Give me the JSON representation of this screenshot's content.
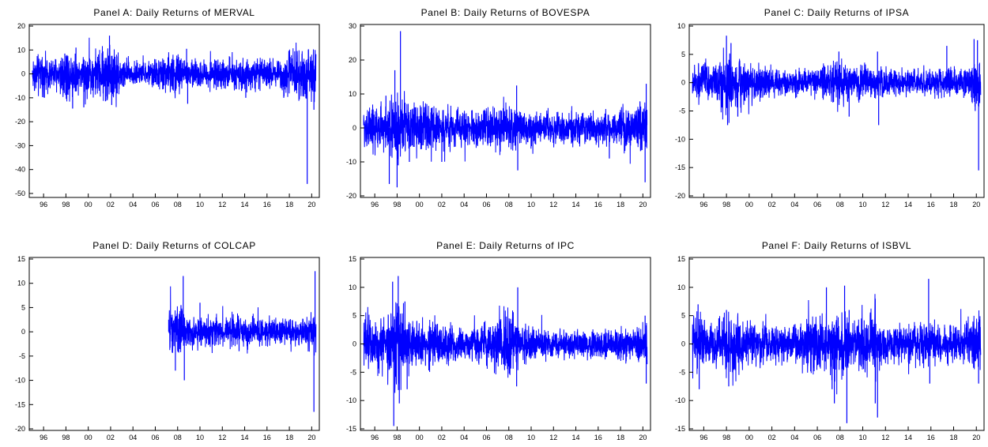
{
  "colors": {
    "series": "#0000ff",
    "frame": "#000000",
    "background": "#ffffff"
  },
  "chart_data": [
    {
      "type": "line",
      "title": "Panel A: Daily Returns of MERVAL",
      "xlabel": "",
      "ylabel": "",
      "x_range": [
        1995,
        2020.4
      ],
      "ylim": [
        -51,
        20
      ],
      "yticks": [
        20,
        10,
        0,
        -10,
        -20,
        -30,
        -40,
        -50
      ],
      "xticks": [
        {
          "year": 1996,
          "label": "96"
        },
        {
          "year": 1998,
          "label": "98"
        },
        {
          "year": 2000,
          "label": "00"
        },
        {
          "year": 2002,
          "label": "02"
        },
        {
          "year": 2004,
          "label": "04"
        },
        {
          "year": 2006,
          "label": "06"
        },
        {
          "year": 2008,
          "label": "08"
        },
        {
          "year": 2010,
          "label": "10"
        },
        {
          "year": 2012,
          "label": "12"
        },
        {
          "year": 2014,
          "label": "14"
        },
        {
          "year": 2016,
          "label": "16"
        },
        {
          "year": 2018,
          "label": "18"
        },
        {
          "year": 2020,
          "label": "20"
        }
      ],
      "series": [
        {
          "data_start": 1995.0,
          "data_end": 2020.4,
          "base_amplitude": 2.5,
          "volatility": [
            [
              1995,
              1.6
            ],
            [
              1997,
              1.3
            ],
            [
              1998,
              2.2
            ],
            [
              1999,
              1.4
            ],
            [
              2001,
              1.9
            ],
            [
              2002,
              2.6
            ],
            [
              2003,
              1.3
            ],
            [
              2005,
              0.8
            ],
            [
              2008,
              1.8
            ],
            [
              2009,
              1.0
            ],
            [
              2012,
              1.1
            ],
            [
              2014,
              1.3
            ],
            [
              2016,
              1.0
            ],
            [
              2018,
              1.6
            ],
            [
              2019.6,
              2.2
            ],
            [
              2020.4,
              2.2
            ]
          ],
          "spikes": [
            [
              1998.6,
              -14.5
            ],
            [
              1997.9,
              8.5
            ],
            [
              1998.9,
              11
            ],
            [
              1999.6,
              -14
            ],
            [
              2001.9,
              16
            ],
            [
              2002.1,
              -13
            ],
            [
              2001.7,
              -11
            ],
            [
              2008.8,
              10.5
            ],
            [
              2008.9,
              -12.5
            ],
            [
              2014.1,
              -10
            ],
            [
              2017.5,
              -10
            ],
            [
              2019.6,
              -46
            ],
            [
              2019.7,
              10
            ],
            [
              2020.2,
              -15
            ],
            [
              2020.3,
              10
            ]
          ]
        }
      ]
    },
    {
      "type": "line",
      "title": "Panel B: Daily Returns of BOVESPA",
      "xlabel": "",
      "ylabel": "",
      "x_range": [
        1995,
        2020.4
      ],
      "ylim": [
        -20,
        30
      ],
      "yticks": [
        30,
        20,
        10,
        0,
        -10,
        -20
      ],
      "xticks": [
        {
          "year": 1996,
          "label": "96"
        },
        {
          "year": 1998,
          "label": "98"
        },
        {
          "year": 2000,
          "label": "00"
        },
        {
          "year": 2002,
          "label": "02"
        },
        {
          "year": 2004,
          "label": "04"
        },
        {
          "year": 2006,
          "label": "06"
        },
        {
          "year": 2008,
          "label": "08"
        },
        {
          "year": 2010,
          "label": "10"
        },
        {
          "year": 2012,
          "label": "12"
        },
        {
          "year": 2014,
          "label": "14"
        },
        {
          "year": 2016,
          "label": "16"
        },
        {
          "year": 2018,
          "label": "18"
        },
        {
          "year": 2020,
          "label": "20"
        }
      ],
      "series": [
        {
          "data_start": 1995.0,
          "data_end": 2020.4,
          "base_amplitude": 2.2,
          "volatility": [
            [
              1995,
              1.4
            ],
            [
              1997,
              1.5
            ],
            [
              1998,
              2.4
            ],
            [
              1999,
              1.7
            ],
            [
              2002,
              1.3
            ],
            [
              2005,
              1.0
            ],
            [
              2008,
              1.7
            ],
            [
              2009,
              1.0
            ],
            [
              2016,
              1.0
            ],
            [
              2020,
              1.6
            ],
            [
              2020.4,
              1.6
            ]
          ],
          "spikes": [
            [
              1997.0,
              9.5
            ],
            [
              1997.3,
              -16.5
            ],
            [
              1997.8,
              17
            ],
            [
              1998.0,
              -17.5
            ],
            [
              1998.3,
              28.5
            ],
            [
              1998.1,
              -11
            ],
            [
              1999.1,
              -10
            ],
            [
              2002.0,
              -10
            ],
            [
              2008.7,
              12.5
            ],
            [
              2008.8,
              -12.5
            ],
            [
              2017.0,
              -9
            ],
            [
              2020.2,
              -16
            ],
            [
              2020.3,
              13
            ]
          ]
        }
      ]
    },
    {
      "type": "line",
      "title": "Panel C: Daily Returns of IPSA",
      "xlabel": "",
      "ylabel": "",
      "x_range": [
        1995,
        2020.4
      ],
      "ylim": [
        -20,
        10
      ],
      "yticks": [
        10,
        5,
        0,
        -5,
        -10,
        -15,
        -20
      ],
      "xticks": [
        {
          "year": 1996,
          "label": "96"
        },
        {
          "year": 1998,
          "label": "98"
        },
        {
          "year": 2000,
          "label": "00"
        },
        {
          "year": 2002,
          "label": "02"
        },
        {
          "year": 2004,
          "label": "04"
        },
        {
          "year": 2006,
          "label": "06"
        },
        {
          "year": 2008,
          "label": "08"
        },
        {
          "year": 2010,
          "label": "10"
        },
        {
          "year": 2012,
          "label": "12"
        },
        {
          "year": 2014,
          "label": "14"
        },
        {
          "year": 2016,
          "label": "16"
        },
        {
          "year": 2018,
          "label": "18"
        },
        {
          "year": 2020,
          "label": "20"
        }
      ],
      "series": [
        {
          "data_start": 1995.0,
          "data_end": 2020.4,
          "base_amplitude": 1.3,
          "volatility": [
            [
              1995,
              1.2
            ],
            [
              1997,
              1.1
            ],
            [
              1998,
              2.0
            ],
            [
              1999,
              1.5
            ],
            [
              2001,
              1.0
            ],
            [
              2003,
              0.8
            ],
            [
              2006,
              0.9
            ],
            [
              2008,
              1.5
            ],
            [
              2009,
              1.1
            ],
            [
              2011,
              1.2
            ],
            [
              2013,
              0.8
            ],
            [
              2019,
              1.0
            ],
            [
              2020,
              1.6
            ],
            [
              2020.4,
              1.6
            ]
          ],
          "spikes": [
            [
              1998.0,
              8.3
            ],
            [
              1998.1,
              -7.5
            ],
            [
              1998.4,
              7
            ],
            [
              1999.0,
              -6
            ],
            [
              2008.8,
              -6
            ],
            [
              2007.9,
              5.5
            ],
            [
              2011.4,
              -7.5
            ],
            [
              2011.3,
              5.5
            ],
            [
              2017.4,
              6.5
            ],
            [
              2019.8,
              7.7
            ],
            [
              2019.9,
              -5
            ],
            [
              2020.2,
              -15.5
            ],
            [
              2020.1,
              7.5
            ]
          ]
        }
      ]
    },
    {
      "type": "line",
      "title": "Panel D: Daily Returns of COLCAP",
      "xlabel": "",
      "ylabel": "",
      "x_range": [
        1995,
        2020.4
      ],
      "ylim": [
        -20,
        15
      ],
      "yticks": [
        15,
        10,
        5,
        0,
        -5,
        -10,
        -15,
        -20
      ],
      "xticks": [
        {
          "year": 1996,
          "label": "96"
        },
        {
          "year": 1998,
          "label": "98"
        },
        {
          "year": 2000,
          "label": "00"
        },
        {
          "year": 2002,
          "label": "02"
        },
        {
          "year": 2004,
          "label": "04"
        },
        {
          "year": 2006,
          "label": "06"
        },
        {
          "year": 2008,
          "label": "08"
        },
        {
          "year": 2010,
          "label": "10"
        },
        {
          "year": 2012,
          "label": "12"
        },
        {
          "year": 2014,
          "label": "14"
        },
        {
          "year": 2016,
          "label": "16"
        },
        {
          "year": 2018,
          "label": "18"
        },
        {
          "year": 2020,
          "label": "20"
        }
      ],
      "series": [
        {
          "data_start": 2007.2,
          "data_end": 2020.4,
          "base_amplitude": 1.3,
          "volatility": [
            [
              2007.2,
              1.6
            ],
            [
              2008,
              2.0
            ],
            [
              2009,
              1.2
            ],
            [
              2011,
              1.0
            ],
            [
              2013,
              1.1
            ],
            [
              2016,
              1.0
            ],
            [
              2019,
              0.9
            ],
            [
              2020,
              1.6
            ],
            [
              2020.4,
              1.6
            ]
          ],
          "spikes": [
            [
              2007.2,
              2.5
            ],
            [
              2007.8,
              -8
            ],
            [
              2008.5,
              11.5
            ],
            [
              2008.6,
              -10
            ],
            [
              2008.3,
              5.5
            ],
            [
              2010.0,
              6
            ],
            [
              2013.5,
              -4
            ],
            [
              2020.2,
              -16.5
            ],
            [
              2020.3,
              12.5
            ]
          ]
        }
      ]
    },
    {
      "type": "line",
      "title": "Panel E: Daily Returns of IPC",
      "xlabel": "",
      "ylabel": "",
      "x_range": [
        1995,
        2020.4
      ],
      "ylim": [
        -15,
        15
      ],
      "yticks": [
        15,
        10,
        5,
        0,
        -5,
        -10,
        -15
      ],
      "xticks": [
        {
          "year": 1996,
          "label": "96"
        },
        {
          "year": 1998,
          "label": "98"
        },
        {
          "year": 2000,
          "label": "00"
        },
        {
          "year": 2002,
          "label": "02"
        },
        {
          "year": 2004,
          "label": "04"
        },
        {
          "year": 2006,
          "label": "06"
        },
        {
          "year": 2008,
          "label": "08"
        },
        {
          "year": 2010,
          "label": "10"
        },
        {
          "year": 2012,
          "label": "12"
        },
        {
          "year": 2014,
          "label": "14"
        },
        {
          "year": 2016,
          "label": "16"
        },
        {
          "year": 2018,
          "label": "18"
        },
        {
          "year": 2020,
          "label": "20"
        }
      ],
      "series": [
        {
          "data_start": 1995.0,
          "data_end": 2020.4,
          "base_amplitude": 1.6,
          "volatility": [
            [
              1995,
              1.8
            ],
            [
              1996,
              1.3
            ],
            [
              1998,
              2.1
            ],
            [
              1999,
              1.5
            ],
            [
              2002,
              1.1
            ],
            [
              2004,
              0.8
            ],
            [
              2006,
              1.0
            ],
            [
              2008,
              1.8
            ],
            [
              2009,
              1.0
            ],
            [
              2012,
              0.7
            ],
            [
              2016,
              0.8
            ],
            [
              2019,
              0.8
            ],
            [
              2020,
              1.4
            ],
            [
              2020.4,
              1.4
            ]
          ],
          "spikes": [
            [
              1997.6,
              11
            ],
            [
              1997.7,
              -14.5
            ],
            [
              1998.1,
              12
            ],
            [
              1998.2,
              -10.5
            ],
            [
              1998.7,
              7.5
            ],
            [
              1998.9,
              -8
            ],
            [
              2008.8,
              10
            ],
            [
              2008.7,
              -7.5
            ],
            [
              2020.3,
              -7
            ],
            [
              2020.2,
              5
            ]
          ]
        }
      ]
    },
    {
      "type": "line",
      "title": "Panel F: Daily Returns of ISBVL",
      "xlabel": "",
      "ylabel": "",
      "x_range": [
        1995,
        2020.4
      ],
      "ylim": [
        -15,
        15
      ],
      "yticks": [
        15,
        10,
        5,
        0,
        -5,
        -10,
        -15
      ],
      "xticks": [
        {
          "year": 1996,
          "label": "96"
        },
        {
          "year": 1998,
          "label": "98"
        },
        {
          "year": 2000,
          "label": "00"
        },
        {
          "year": 2002,
          "label": "02"
        },
        {
          "year": 2004,
          "label": "04"
        },
        {
          "year": 2006,
          "label": "06"
        },
        {
          "year": 2008,
          "label": "08"
        },
        {
          "year": 2010,
          "label": "10"
        },
        {
          "year": 2012,
          "label": "12"
        },
        {
          "year": 2014,
          "label": "14"
        },
        {
          "year": 2016,
          "label": "16"
        },
        {
          "year": 2018,
          "label": "18"
        },
        {
          "year": 2020,
          "label": "20"
        }
      ],
      "series": [
        {
          "data_start": 1995.0,
          "data_end": 2020.4,
          "base_amplitude": 1.5,
          "volatility": [
            [
              1995,
              1.6
            ],
            [
              1997,
              1.2
            ],
            [
              1998,
              1.8
            ],
            [
              2000,
              1.2
            ],
            [
              2002,
              0.9
            ],
            [
              2004,
              1.1
            ],
            [
              2006,
              1.6
            ],
            [
              2007,
              1.4
            ],
            [
              2008,
              2.0
            ],
            [
              2009,
              1.3
            ],
            [
              2011,
              1.6
            ],
            [
              2012,
              1.1
            ],
            [
              2014,
              1.0
            ],
            [
              2016,
              1.2
            ],
            [
              2018,
              0.9
            ],
            [
              2020,
              1.5
            ],
            [
              2020.4,
              1.5
            ]
          ],
          "spikes": [
            [
              1995.5,
              7
            ],
            [
              1995.6,
              -8
            ],
            [
              1998.0,
              6
            ],
            [
              1998.2,
              -7.5
            ],
            [
              2006.8,
              10
            ],
            [
              2007.3,
              -8
            ],
            [
              2007.5,
              -10.5
            ],
            [
              2008.4,
              10.3
            ],
            [
              2008.6,
              -14
            ],
            [
              2008.8,
              6
            ],
            [
              2011.1,
              8
            ],
            [
              2011.3,
              -13
            ],
            [
              2011.1,
              -10.5
            ],
            [
              2015.8,
              11.5
            ],
            [
              2015.9,
              -7
            ],
            [
              2020.2,
              -7
            ]
          ]
        }
      ]
    }
  ]
}
